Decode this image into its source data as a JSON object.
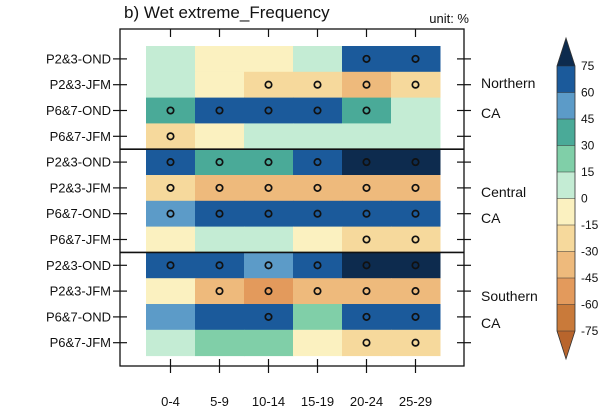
{
  "chart_data": {
    "type": "heatmap",
    "title": "b) Wet extreme_Frequency",
    "unit_label": "unit: %",
    "columns": [
      "0-4",
      "5-9",
      "10-14",
      "15-19",
      "20-24",
      "25-29"
    ],
    "rows": [
      "P2&3-OND",
      "P2&3-JFM",
      "P6&7-OND",
      "P6&7-JFM",
      "P2&3-OND",
      "P2&3-JFM",
      "P6&7-OND",
      "P6&7-JFM",
      "P2&3-OND",
      "P2&3-JFM",
      "P6&7-OND",
      "P6&7-JFM"
    ],
    "regions": [
      {
        "lines": [
          "Northern",
          "CA"
        ]
      },
      {
        "lines": [
          "Central",
          "CA"
        ]
      },
      {
        "lines": [
          "Southern",
          "CA"
        ]
      }
    ],
    "values": [
      [
        10,
        -5,
        -5,
        10,
        60,
        60
      ],
      [
        10,
        -5,
        -30,
        -30,
        -40,
        -30
      ],
      [
        30,
        60,
        70,
        60,
        30,
        10
      ],
      [
        -20,
        -10,
        10,
        10,
        10,
        10
      ],
      [
        60,
        40,
        30,
        60,
        90,
        90
      ],
      [
        -30,
        -45,
        -45,
        -45,
        -45,
        -45
      ],
      [
        45,
        60,
        70,
        60,
        60,
        60
      ],
      [
        -10,
        10,
        10,
        -10,
        -30,
        -20
      ],
      [
        60,
        60,
        45,
        70,
        90,
        90
      ],
      [
        -10,
        -45,
        -55,
        -45,
        -40,
        -40
      ],
      [
        45,
        60,
        60,
        15,
        70,
        70
      ],
      [
        10,
        20,
        20,
        -5,
        -30,
        -30
      ]
    ],
    "significant": [
      [
        0,
        0,
        0,
        0,
        1,
        1
      ],
      [
        0,
        0,
        1,
        1,
        1,
        1
      ],
      [
        1,
        1,
        1,
        1,
        1,
        0
      ],
      [
        1,
        0,
        0,
        0,
        0,
        0
      ],
      [
        1,
        1,
        1,
        1,
        1,
        1
      ],
      [
        1,
        1,
        1,
        1,
        1,
        1
      ],
      [
        1,
        1,
        1,
        1,
        1,
        1
      ],
      [
        0,
        0,
        0,
        0,
        1,
        1
      ],
      [
        1,
        1,
        1,
        1,
        1,
        1
      ],
      [
        0,
        1,
        1,
        1,
        1,
        1
      ],
      [
        0,
        0,
        1,
        0,
        1,
        1
      ],
      [
        0,
        0,
        0,
        0,
        1,
        1
      ]
    ],
    "colorbar": {
      "ticks": [
        75,
        60,
        45,
        30,
        15,
        0,
        -15,
        -30,
        -45,
        -60,
        -75
      ],
      "levels": [
        {
          "min": 75,
          "color": "#0d2b4e"
        },
        {
          "min": 60,
          "color": "#1b5a9b"
        },
        {
          "min": 45,
          "color": "#5c9bc8"
        },
        {
          "min": 30,
          "color": "#4aaa98"
        },
        {
          "min": 15,
          "color": "#80cfa8"
        },
        {
          "min": 0,
          "color": "#c4ecd4"
        },
        {
          "min": -15,
          "color": "#fbf1c0"
        },
        {
          "min": -30,
          "color": "#f6d99c"
        },
        {
          "min": -45,
          "color": "#eeba7c"
        },
        {
          "min": -60,
          "color": "#e39a5c"
        },
        {
          "min": -75,
          "color": "#c97a3a"
        },
        {
          "min": -999,
          "color": "#b8652c"
        }
      ]
    }
  }
}
